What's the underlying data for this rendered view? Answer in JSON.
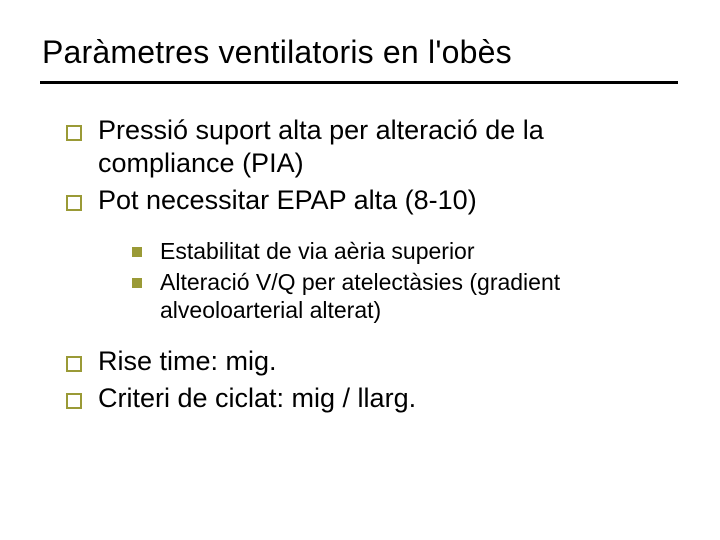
{
  "colors": {
    "accent": "#9a9a36",
    "text": "#000000",
    "background": "#ffffff",
    "rule": "#000000"
  },
  "title": "Paràmetres ventilatoris en l'obès",
  "bullets": {
    "group1": [
      "Pressió suport alta per alteració de la compliance (PIA)",
      "Pot necessitar EPAP alta (8-10)"
    ],
    "sub": [
      "Estabilitat de via aèria superior",
      "Alteració V/Q per atelectàsies (gradient alveoloarterial  alterat)"
    ],
    "group2": [
      "Rise time: mig.",
      "Criteri de ciclat: mig / llarg."
    ]
  }
}
